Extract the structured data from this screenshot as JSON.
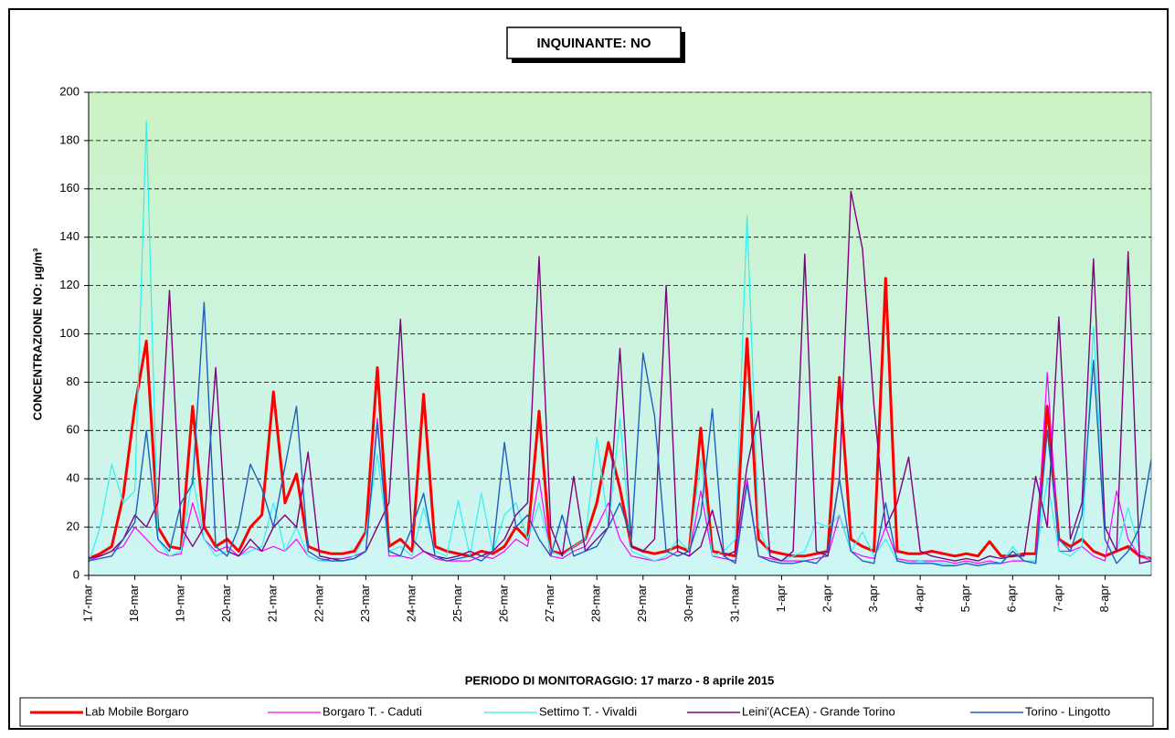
{
  "chart_data": {
    "type": "line",
    "title": "INQUINANTE: NO",
    "ylabel": "CONCENTRAZIONE NO:  µg/m³",
    "xlabel": "PERIODO DI MONITORAGGIO: 17 marzo - 8 aprile 2015",
    "xlim": [
      0,
      23
    ],
    "ylim": [
      0,
      200
    ],
    "yticks": [
      0,
      20,
      40,
      60,
      80,
      100,
      120,
      140,
      160,
      180,
      200
    ],
    "grid": true,
    "xticks": [
      {
        "value": 0,
        "label": "17-mar"
      },
      {
        "value": 1,
        "label": "18-mar"
      },
      {
        "value": 2,
        "label": "19-mar"
      },
      {
        "value": 3,
        "label": "20-mar"
      },
      {
        "value": 4,
        "label": "21-mar"
      },
      {
        "value": 5,
        "label": "22-mar"
      },
      {
        "value": 6,
        "label": "23-mar"
      },
      {
        "value": 7,
        "label": "24-mar"
      },
      {
        "value": 8,
        "label": "25-mar"
      },
      {
        "value": 9,
        "label": "26-mar"
      },
      {
        "value": 10,
        "label": "27-mar"
      },
      {
        "value": 11,
        "label": "28-mar"
      },
      {
        "value": 12,
        "label": "29-mar"
      },
      {
        "value": 13,
        "label": "30-mar"
      },
      {
        "value": 14,
        "label": "31-mar"
      },
      {
        "value": 15,
        "label": "1-apr"
      },
      {
        "value": 16,
        "label": "2-apr"
      },
      {
        "value": 17,
        "label": "3-apr"
      },
      {
        "value": 18,
        "label": "4-apr"
      },
      {
        "value": 19,
        "label": "5-apr"
      },
      {
        "value": 20,
        "label": "6-apr"
      },
      {
        "value": 21,
        "label": "7-apr"
      },
      {
        "value": 22,
        "label": "8-apr"
      }
    ],
    "x": [
      0,
      0.25,
      0.5,
      0.75,
      1,
      1.25,
      1.5,
      1.75,
      2,
      2.25,
      2.5,
      2.75,
      3,
      3.25,
      3.5,
      3.75,
      4,
      4.25,
      4.5,
      4.75,
      5,
      5.25,
      5.5,
      5.75,
      6,
      6.25,
      6.5,
      6.75,
      7,
      7.25,
      7.5,
      7.75,
      8,
      8.25,
      8.5,
      8.75,
      9,
      9.25,
      9.5,
      9.75,
      10,
      10.25,
      10.5,
      10.75,
      11,
      11.25,
      11.5,
      11.75,
      12,
      12.25,
      12.5,
      12.75,
      13,
      13.25,
      13.5,
      13.75,
      14,
      14.25,
      14.5,
      14.75,
      15,
      15.25,
      15.5,
      15.75,
      16,
      16.25,
      16.5,
      16.75,
      17,
      17.25,
      17.5,
      17.75,
      18,
      18.25,
      18.5,
      18.75,
      19,
      19.25,
      19.5,
      19.75,
      20,
      20.25,
      20.5,
      20.75,
      21,
      21.25,
      21.5,
      21.75,
      22,
      22.25,
      22.5,
      22.75,
      23
    ],
    "series": [
      {
        "name": "Lab Mobile Borgaro",
        "color": "#ff0000",
        "width": 3,
        "values": [
          7,
          9,
          12,
          33,
          70,
          97,
          20,
          12,
          11,
          70,
          20,
          12,
          15,
          10,
          20,
          25,
          76,
          30,
          42,
          12,
          10,
          9,
          9,
          10,
          18,
          86,
          12,
          15,
          10,
          75,
          12,
          10,
          9,
          8,
          10,
          9,
          12,
          20,
          15,
          68,
          10,
          9,
          12,
          15,
          30,
          55,
          36,
          12,
          10,
          9,
          10,
          12,
          10,
          61,
          10,
          9,
          8,
          98,
          15,
          10,
          9,
          8,
          8,
          9,
          10,
          82,
          15,
          12,
          10,
          123,
          10,
          9,
          9,
          10,
          9,
          8,
          9,
          8,
          14,
          8,
          8,
          9,
          9,
          70,
          15,
          12,
          15,
          10,
          8,
          10,
          12,
          8,
          7
        ]
      },
      {
        "name": "Borgaro T. - Caduti",
        "color": "#ff00ff",
        "width": 1.2,
        "values": [
          6,
          8,
          10,
          12,
          20,
          15,
          10,
          8,
          9,
          30,
          15,
          10,
          12,
          8,
          12,
          10,
          12,
          10,
          15,
          8,
          6,
          7,
          7,
          8,
          10,
          65,
          8,
          8,
          7,
          10,
          7,
          6,
          6,
          6,
          8,
          7,
          10,
          15,
          12,
          40,
          8,
          7,
          10,
          12,
          20,
          30,
          15,
          8,
          7,
          6,
          7,
          10,
          8,
          35,
          8,
          7,
          6,
          40,
          8,
          7,
          6,
          6,
          6,
          7,
          8,
          25,
          10,
          8,
          7,
          20,
          7,
          6,
          6,
          6,
          6,
          5,
          6,
          5,
          6,
          5,
          6,
          6,
          6,
          84,
          10,
          10,
          12,
          8,
          6,
          35,
          15,
          8,
          6
        ]
      },
      {
        "name": "Settimo T. - Vivaldi",
        "color": "#33f0f0",
        "width": 1.2,
        "values": [
          5,
          20,
          46,
          30,
          35,
          188,
          15,
          8,
          10,
          41,
          15,
          8,
          10,
          8,
          10,
          12,
          30,
          10,
          20,
          8,
          6,
          6,
          6,
          8,
          17,
          50,
          10,
          12,
          8,
          28,
          10,
          8,
          31,
          8,
          34,
          10,
          25,
          30,
          15,
          30,
          10,
          8,
          12,
          15,
          57,
          20,
          65,
          10,
          8,
          6,
          8,
          15,
          10,
          48,
          8,
          10,
          15,
          149,
          20,
          8,
          6,
          8,
          10,
          22,
          20,
          25,
          10,
          18,
          8,
          15,
          6,
          5,
          6,
          5,
          5,
          4,
          5,
          4,
          5,
          5,
          12,
          6,
          6,
          40,
          10,
          8,
          12,
          103,
          20,
          10,
          28,
          10,
          6
        ]
      },
      {
        "name": "Leini'(ACEA) - Grande Torino",
        "color": "#800080",
        "width": 1.4,
        "values": [
          7,
          8,
          10,
          15,
          25,
          20,
          30,
          118,
          20,
          12,
          20,
          86,
          10,
          8,
          15,
          10,
          20,
          25,
          20,
          51,
          8,
          7,
          6,
          7,
          10,
          20,
          30,
          106,
          15,
          10,
          8,
          7,
          8,
          10,
          8,
          10,
          15,
          25,
          30,
          132,
          20,
          8,
          41,
          10,
          15,
          20,
          94,
          12,
          10,
          15,
          120,
          10,
          8,
          12,
          27,
          8,
          10,
          45,
          68,
          8,
          6,
          10,
          133,
          10,
          8,
          40,
          159,
          135,
          70,
          20,
          30,
          49,
          10,
          8,
          7,
          6,
          7,
          6,
          8,
          7,
          8,
          8,
          41,
          20,
          107,
          15,
          30,
          131,
          20,
          10,
          134,
          5,
          6
        ]
      },
      {
        "name": "Torino - Lingotto",
        "color": "#1f5fbf",
        "width": 1.4,
        "values": [
          6,
          7,
          8,
          15,
          22,
          60,
          15,
          10,
          30,
          38,
          113,
          12,
          8,
          20,
          46,
          36,
          20,
          45,
          70,
          10,
          7,
          6,
          6,
          7,
          10,
          63,
          10,
          8,
          20,
          34,
          8,
          6,
          7,
          8,
          6,
          10,
          55,
          20,
          25,
          15,
          8,
          25,
          8,
          10,
          12,
          20,
          30,
          15,
          92,
          66,
          10,
          8,
          10,
          25,
          69,
          8,
          5,
          38,
          8,
          6,
          5,
          5,
          6,
          5,
          10,
          40,
          10,
          6,
          5,
          30,
          6,
          5,
          5,
          5,
          4,
          4,
          5,
          4,
          5,
          5,
          10,
          6,
          5,
          60,
          15,
          10,
          25,
          89,
          15,
          5,
          10,
          20,
          48
        ]
      }
    ]
  }
}
